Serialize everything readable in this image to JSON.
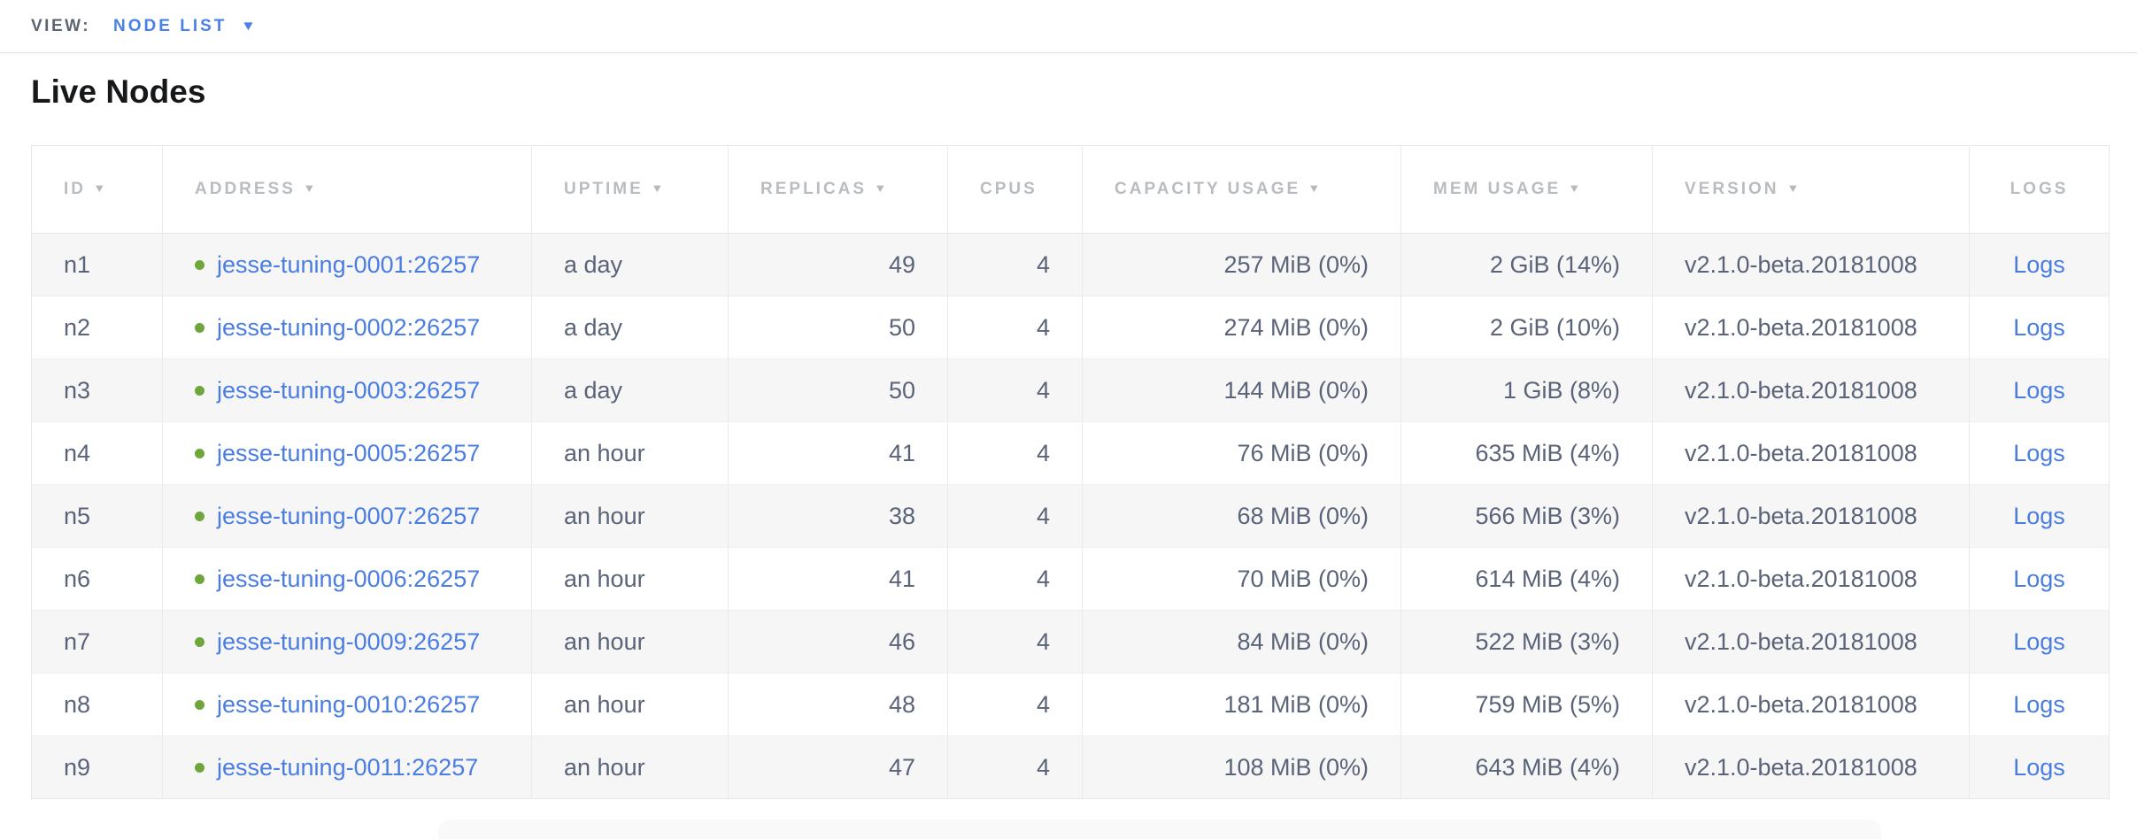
{
  "view_bar": {
    "label": "VIEW:",
    "selected": "NODE LIST"
  },
  "page": {
    "title": "Live Nodes"
  },
  "icons": {
    "dropdown_caret": "▼",
    "sort_arrow": "▼"
  },
  "colors": {
    "link_blue": "#4a7de2",
    "healthy_green": "#6ea63c",
    "header_gray": "#b9bcc0",
    "cell_text": "#5a6377"
  },
  "table": {
    "columns": [
      {
        "key": "id",
        "label": "ID",
        "sortable": true,
        "align": "left"
      },
      {
        "key": "address",
        "label": "ADDRESS",
        "sortable": true,
        "align": "left"
      },
      {
        "key": "uptime",
        "label": "UPTIME",
        "sortable": true,
        "align": "left"
      },
      {
        "key": "replicas",
        "label": "REPLICAS",
        "sortable": true,
        "align": "right"
      },
      {
        "key": "cpus",
        "label": "CPUS",
        "sortable": false,
        "align": "right"
      },
      {
        "key": "capacity",
        "label": "CAPACITY USAGE",
        "sortable": true,
        "align": "right"
      },
      {
        "key": "mem",
        "label": "MEM USAGE",
        "sortable": true,
        "align": "right"
      },
      {
        "key": "version",
        "label": "VERSION",
        "sortable": true,
        "align": "left"
      },
      {
        "key": "logs",
        "label": "LOGS",
        "sortable": false,
        "align": "center"
      }
    ],
    "rows": [
      {
        "id": "n1",
        "address": "jesse-tuning-0001:26257",
        "uptime": "a day",
        "replicas": "49",
        "cpus": "4",
        "capacity": "257 MiB (0%)",
        "mem": "2 GiB (14%)",
        "version": "v2.1.0-beta.20181008",
        "logs": "Logs"
      },
      {
        "id": "n2",
        "address": "jesse-tuning-0002:26257",
        "uptime": "a day",
        "replicas": "50",
        "cpus": "4",
        "capacity": "274 MiB (0%)",
        "mem": "2 GiB (10%)",
        "version": "v2.1.0-beta.20181008",
        "logs": "Logs"
      },
      {
        "id": "n3",
        "address": "jesse-tuning-0003:26257",
        "uptime": "a day",
        "replicas": "50",
        "cpus": "4",
        "capacity": "144 MiB (0%)",
        "mem": "1 GiB (8%)",
        "version": "v2.1.0-beta.20181008",
        "logs": "Logs"
      },
      {
        "id": "n4",
        "address": "jesse-tuning-0005:26257",
        "uptime": "an hour",
        "replicas": "41",
        "cpus": "4",
        "capacity": "76 MiB (0%)",
        "mem": "635 MiB (4%)",
        "version": "v2.1.0-beta.20181008",
        "logs": "Logs"
      },
      {
        "id": "n5",
        "address": "jesse-tuning-0007:26257",
        "uptime": "an hour",
        "replicas": "38",
        "cpus": "4",
        "capacity": "68 MiB (0%)",
        "mem": "566 MiB (3%)",
        "version": "v2.1.0-beta.20181008",
        "logs": "Logs"
      },
      {
        "id": "n6",
        "address": "jesse-tuning-0006:26257",
        "uptime": "an hour",
        "replicas": "41",
        "cpus": "4",
        "capacity": "70 MiB (0%)",
        "mem": "614 MiB (4%)",
        "version": "v2.1.0-beta.20181008",
        "logs": "Logs"
      },
      {
        "id": "n7",
        "address": "jesse-tuning-0009:26257",
        "uptime": "an hour",
        "replicas": "46",
        "cpus": "4",
        "capacity": "84 MiB (0%)",
        "mem": "522 MiB (3%)",
        "version": "v2.1.0-beta.20181008",
        "logs": "Logs"
      },
      {
        "id": "n8",
        "address": "jesse-tuning-0010:26257",
        "uptime": "an hour",
        "replicas": "48",
        "cpus": "4",
        "capacity": "181 MiB (0%)",
        "mem": "759 MiB (5%)",
        "version": "v2.1.0-beta.20181008",
        "logs": "Logs"
      },
      {
        "id": "n9",
        "address": "jesse-tuning-0011:26257",
        "uptime": "an hour",
        "replicas": "47",
        "cpus": "4",
        "capacity": "108 MiB (0%)",
        "mem": "643 MiB (4%)",
        "version": "v2.1.0-beta.20181008",
        "logs": "Logs"
      }
    ]
  }
}
